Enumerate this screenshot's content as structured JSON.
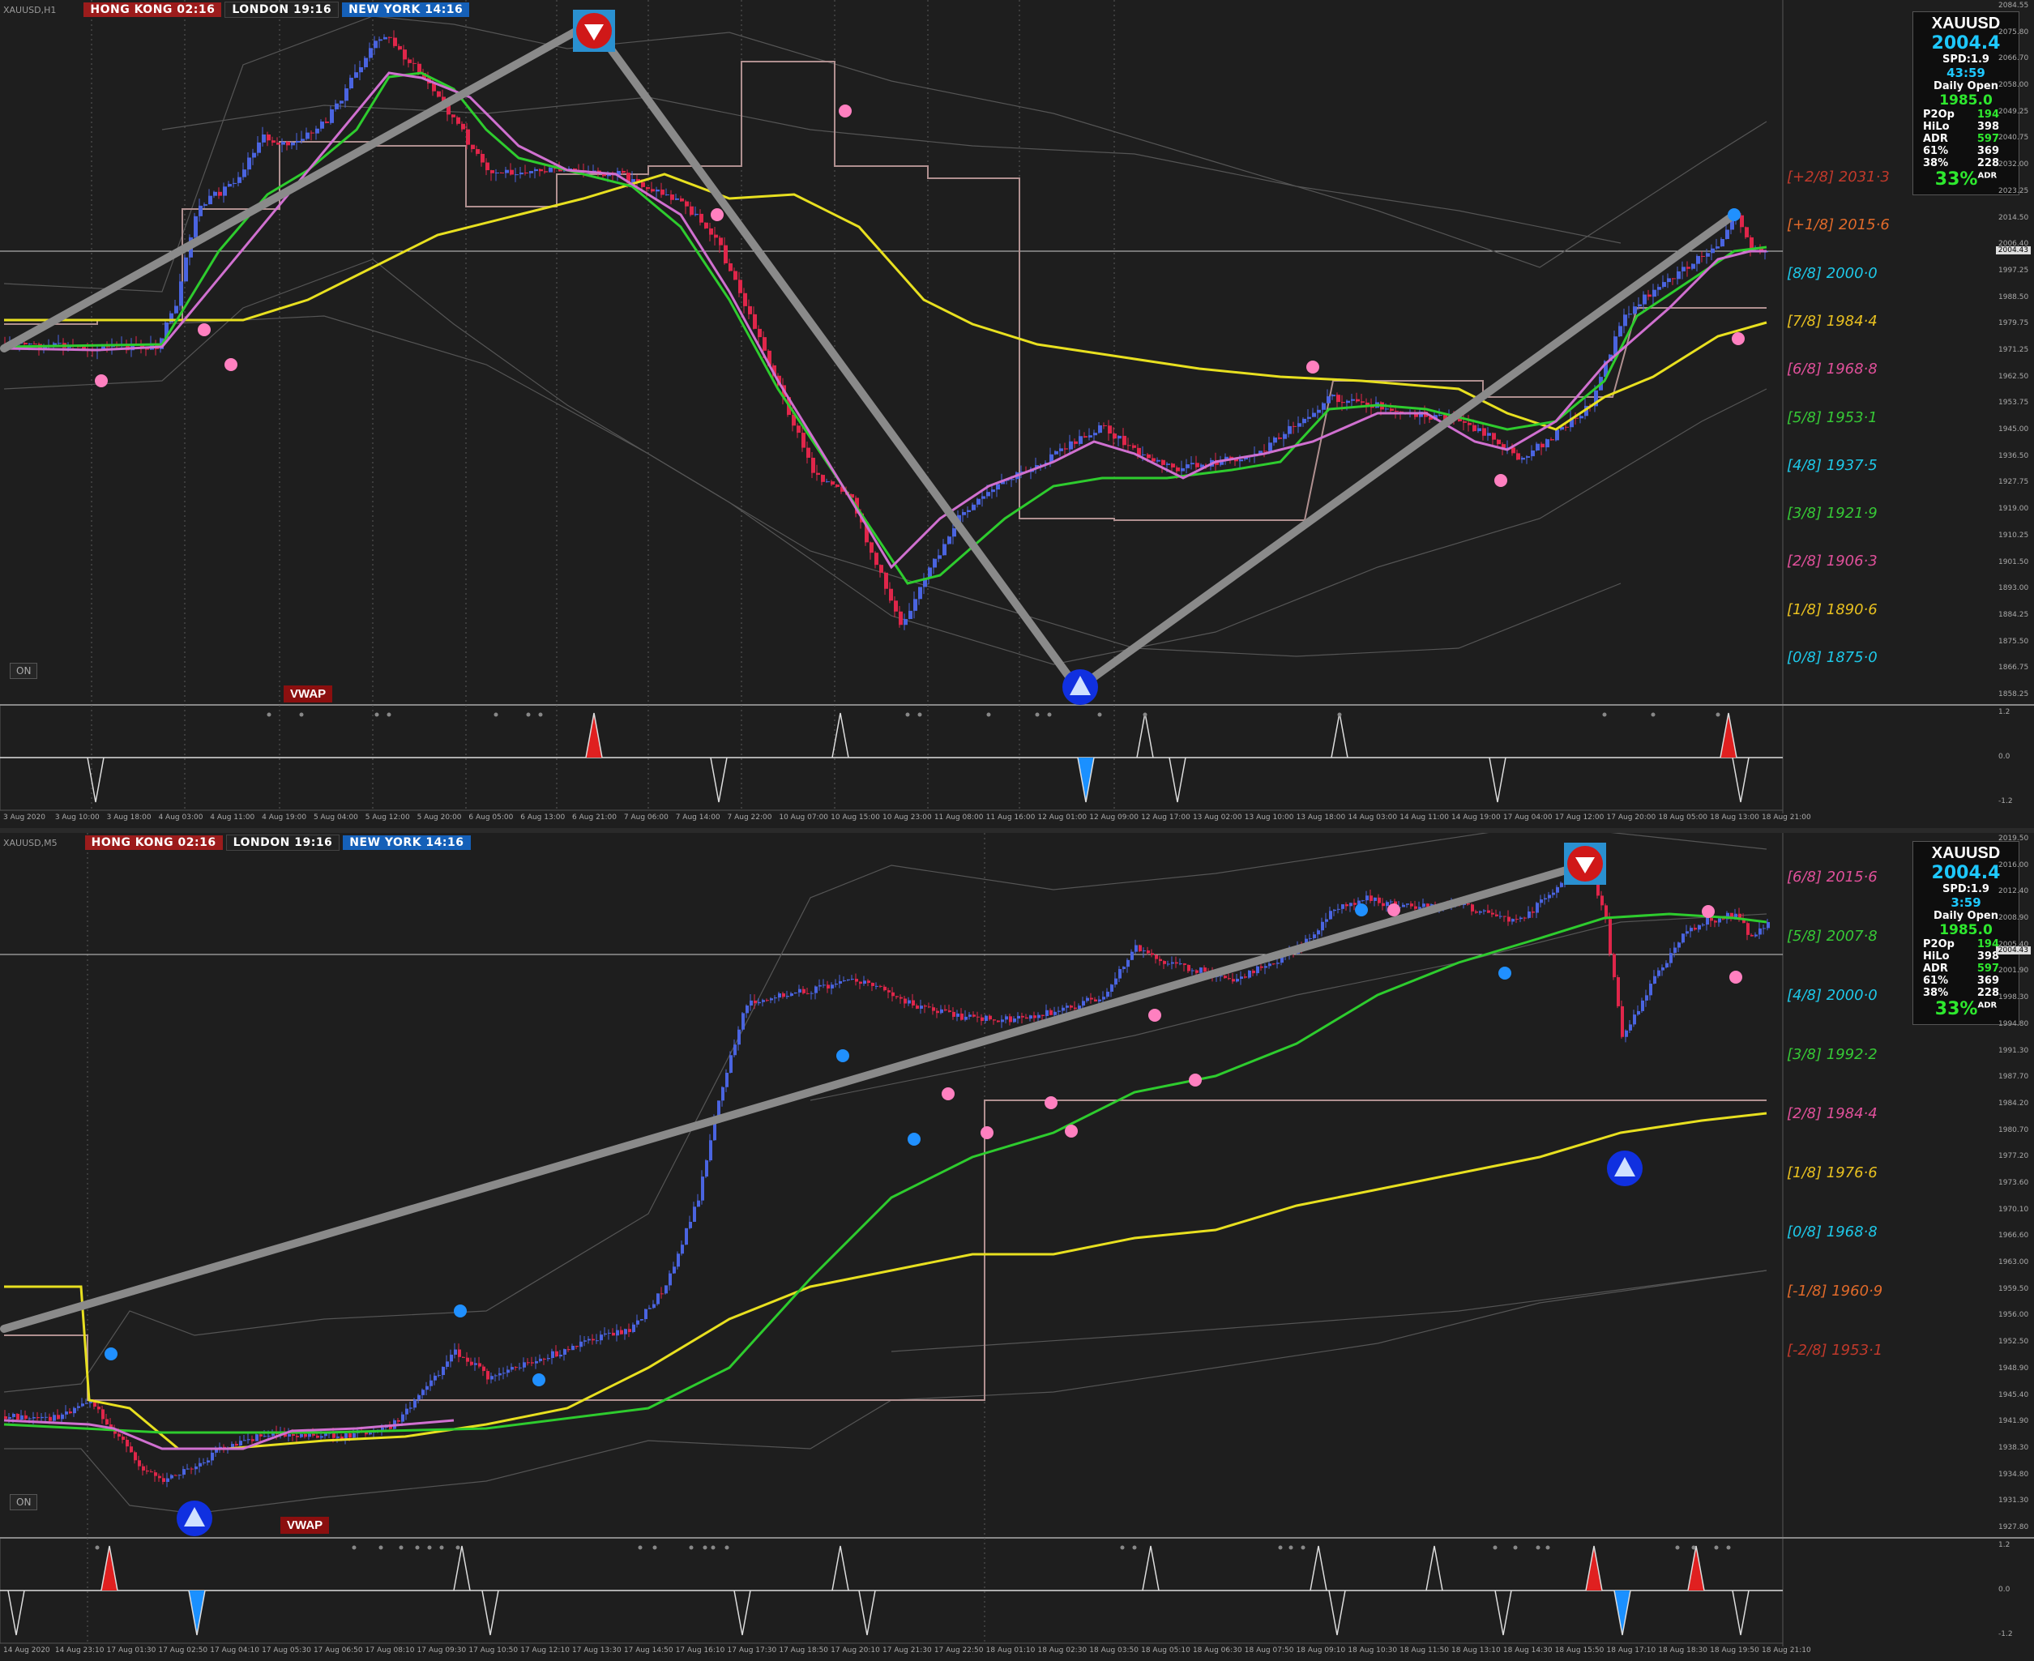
{
  "top": {
    "symbol_tag": "XAUUSD,H1",
    "sessions": [
      {
        "label": "HONG KONG  02:16",
        "kind": "hk"
      },
      {
        "label": "LONDON  19:16",
        "kind": "ld"
      },
      {
        "label": "NEW YORK  14:16",
        "kind": "ny"
      }
    ],
    "info": {
      "symbol": "XAUUSD",
      "price": "2004.4",
      "spread": "SPD:1.9",
      "timer": "43:59",
      "daily_open_label": "Daily Open",
      "daily_open": "1985.0",
      "rows": [
        [
          "P2Op",
          "194"
        ],
        [
          "HiLo",
          "398"
        ],
        [
          "ADR",
          "597"
        ],
        [
          "61%",
          "369"
        ],
        [
          "38%",
          "228"
        ]
      ],
      "adr_pct": "33%",
      "adr_sup": "ADR"
    },
    "on_label": "ON",
    "vwap_label": "VWAP",
    "murrey": [
      {
        "text": "[+2/8]  2031·3",
        "color": "#c0392b"
      },
      {
        "text": "[+1/8]  2015·6",
        "color": "#e06a2a"
      },
      {
        "text": "[8/8]  2000·0",
        "color": "#1ec8e8"
      },
      {
        "text": "[7/8]  1984·4",
        "color": "#e8c020"
      },
      {
        "text": "[6/8]  1968·8",
        "color": "#e0509a"
      },
      {
        "text": "[5/8]  1953·1",
        "color": "#36c836"
      },
      {
        "text": "[4/8]  1937·5",
        "color": "#1ec8e8"
      },
      {
        "text": "[3/8]  1921·9",
        "color": "#36c836"
      },
      {
        "text": "[2/8]  1906·3",
        "color": "#e0509a"
      },
      {
        "text": "[1/8]  1890·6",
        "color": "#e8c020"
      },
      {
        "text": "[0/8]  1875·0",
        "color": "#1ec8e8"
      }
    ],
    "price_scale": [
      "2084.55",
      "2075.80",
      "2066.70",
      "2058.00",
      "2049.25",
      "2040.75",
      "2032.00",
      "2023.25",
      "2014.50",
      "2006.40",
      "1997.25",
      "1988.50",
      "1979.75",
      "1971.25",
      "1962.50",
      "1953.75",
      "1945.00",
      "1936.50",
      "1927.75",
      "1919.00",
      "1910.25",
      "1901.50",
      "1893.00",
      "1884.25",
      "1875.50",
      "1866.75",
      "1858.25"
    ],
    "current_price_tag": "2004.43",
    "osc_scale": [
      "1.2",
      "0.0",
      "-1.2"
    ],
    "time_axis": [
      "3 Aug 2020",
      "3 Aug 10:00",
      "3 Aug 18:00",
      "4 Aug 03:00",
      "4 Aug 11:00",
      "4 Aug 19:00",
      "5 Aug 04:00",
      "5 Aug 12:00",
      "5 Aug 20:00",
      "6 Aug 05:00",
      "6 Aug 13:00",
      "6 Aug 21:00",
      "7 Aug 06:00",
      "7 Aug 14:00",
      "7 Aug 22:00",
      "10 Aug 07:00",
      "10 Aug 15:00",
      "10 Aug 23:00",
      "11 Aug 08:00",
      "11 Aug 16:00",
      "12 Aug 01:00",
      "12 Aug 09:00",
      "12 Aug 17:00",
      "13 Aug 02:00",
      "13 Aug 10:00",
      "13 Aug 18:00",
      "14 Aug 03:00",
      "14 Aug 11:00",
      "14 Aug 19:00",
      "17 Aug 04:00",
      "17 Aug 12:00",
      "17 Aug 20:00",
      "18 Aug 05:00",
      "18 Aug 13:00",
      "18 Aug 21:00"
    ]
  },
  "bottom": {
    "symbol_tag": "XAUUSD,M5",
    "sessions": [
      {
        "label": "HONG KONG  02:16",
        "kind": "hk"
      },
      {
        "label": "LONDON  19:16",
        "kind": "ld"
      },
      {
        "label": "NEW YORK  14:16",
        "kind": "ny"
      }
    ],
    "info": {
      "symbol": "XAUUSD",
      "price": "2004.4",
      "spread": "SPD:1.9",
      "timer": "3:59",
      "daily_open_label": "Daily Open",
      "daily_open": "1985.0",
      "rows": [
        [
          "P2Op",
          "194"
        ],
        [
          "HiLo",
          "398"
        ],
        [
          "ADR",
          "597"
        ],
        [
          "61%",
          "369"
        ],
        [
          "38%",
          "228"
        ]
      ],
      "adr_pct": "33%",
      "adr_sup": "ADR"
    },
    "on_label": "ON",
    "vwap_label": "VWAP",
    "murrey": [
      {
        "text": "[6/8]  2015·6",
        "color": "#e0509a"
      },
      {
        "text": "[5/8]  2007·8",
        "color": "#36c836"
      },
      {
        "text": "[4/8]  2000·0",
        "color": "#1ec8e8"
      },
      {
        "text": "[3/8]  1992·2",
        "color": "#36c836"
      },
      {
        "text": "[2/8]  1984·4",
        "color": "#e0509a"
      },
      {
        "text": "[1/8]  1976·6",
        "color": "#e8c020"
      },
      {
        "text": "[0/8]  1968·8",
        "color": "#1ec8e8"
      },
      {
        "text": "[-1/8]  1960·9",
        "color": "#e06a2a"
      },
      {
        "text": "[-2/8]  1953·1",
        "color": "#c0392b"
      }
    ],
    "price_scale": [
      "2019.50",
      "2016.00",
      "2012.40",
      "2008.90",
      "2005.40",
      "2001.90",
      "1998.30",
      "1994.80",
      "1991.30",
      "1987.70",
      "1984.20",
      "1980.70",
      "1977.20",
      "1973.60",
      "1970.10",
      "1966.60",
      "1963.00",
      "1959.50",
      "1956.00",
      "1952.50",
      "1948.90",
      "1945.40",
      "1941.90",
      "1938.30",
      "1934.80",
      "1931.30",
      "1927.80"
    ],
    "current_price_tag": "2004.43",
    "osc_scale": [
      "1.2",
      "0.0",
      "-1.2"
    ],
    "time_axis": [
      "14 Aug 2020",
      "14 Aug 23:10",
      "17 Aug 01:30",
      "17 Aug 02:50",
      "17 Aug 04:10",
      "17 Aug 05:30",
      "17 Aug 06:50",
      "17 Aug 08:10",
      "17 Aug 09:30",
      "17 Aug 10:50",
      "17 Aug 12:10",
      "17 Aug 13:30",
      "17 Aug 14:50",
      "17 Aug 16:10",
      "17 Aug 17:30",
      "17 Aug 18:50",
      "17 Aug 20:10",
      "17 Aug 21:30",
      "17 Aug 22:50",
      "18 Aug 01:10",
      "18 Aug 02:30",
      "18 Aug 03:50",
      "18 Aug 05:10",
      "18 Aug 06:30",
      "18 Aug 07:50",
      "18 Aug 09:10",
      "18 Aug 10:30",
      "18 Aug 11:50",
      "18 Aug 13:10",
      "18 Aug 14:30",
      "18 Aug 15:50",
      "18 Aug 17:10",
      "18 Aug 18:30",
      "18 Aug 19:50",
      "18 Aug 21:10"
    ]
  },
  "colors": {
    "bull": "#4a64e0",
    "bear": "#e0264a",
    "ema_fast": "#2ecc2e",
    "ema_slow": "#e8e020",
    "vwap_line": "#d070d0",
    "zigzag": "#8a8a8a",
    "bands": "#555555",
    "box": "#b09090"
  }
}
